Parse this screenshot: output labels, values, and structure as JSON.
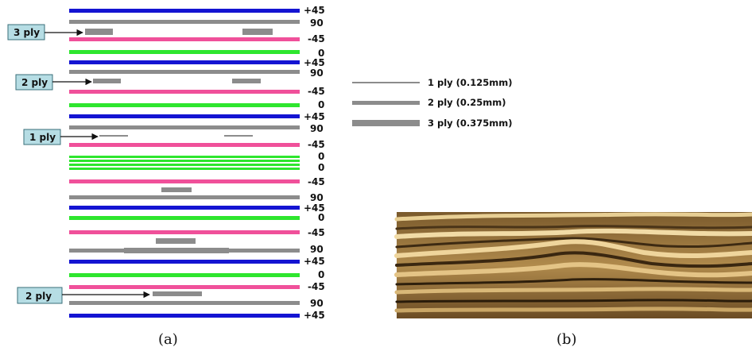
{
  "colors": {
    "+45": "#1414d2",
    "90": "#8c8c8c",
    "-45": "#f0509a",
    "0": "#2ee62e",
    "callout_fill": "#b6dde4",
    "callout_stroke": "#3a6f7a"
  },
  "layers": [
    {
      "angle": "+45"
    },
    {
      "angle": "90"
    },
    {
      "angle": "-45"
    },
    {
      "angle": "0"
    },
    {
      "angle": "+45"
    },
    {
      "angle": "90"
    },
    {
      "angle": "-45"
    },
    {
      "angle": "0"
    },
    {
      "angle": "+45"
    },
    {
      "angle": "90"
    },
    {
      "angle": "-45"
    },
    {
      "angle": "0"
    },
    {
      "angle": "0"
    },
    {
      "angle": "-45"
    },
    {
      "angle": "90"
    },
    {
      "angle": "+45"
    },
    {
      "angle": "0"
    },
    {
      "angle": "-45"
    },
    {
      "angle": "90"
    },
    {
      "angle": "+45"
    },
    {
      "angle": "0"
    },
    {
      "angle": "-45"
    },
    {
      "angle": "90"
    },
    {
      "angle": "+45"
    }
  ],
  "callouts": [
    {
      "label": "3 ply"
    },
    {
      "label": "2 ply"
    },
    {
      "label": "1 ply"
    },
    {
      "label": "2 ply"
    }
  ],
  "legend": [
    {
      "label": "1 ply (0.125mm)"
    },
    {
      "label": "2 ply (0.25mm)"
    },
    {
      "label": "3 ply (0.375mm)"
    }
  ],
  "captions": {
    "a": "(a)",
    "b": "(b)"
  },
  "photo": {
    "description_icon": "micrograph-photo"
  }
}
